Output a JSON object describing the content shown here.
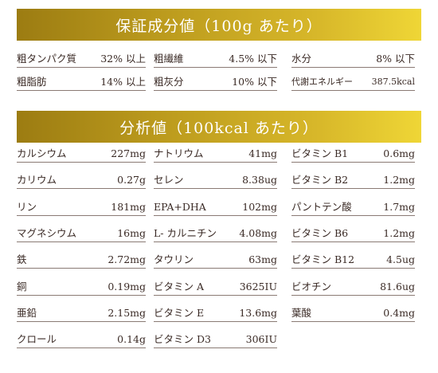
{
  "guaranteed": {
    "title": "保証成分値（100g あたり）",
    "items": [
      {
        "label": "粗タンパク質",
        "value": "32% 以上"
      },
      {
        "label": "粗繊維",
        "value": "4.5% 以下"
      },
      {
        "label": "水分",
        "value": "8% 以下"
      },
      {
        "label": "粗脂肪",
        "value": "14% 以上"
      },
      {
        "label": "粗灰分",
        "value": "10% 以下"
      },
      {
        "label": "代謝エネルギー",
        "value": "387.5kcal"
      }
    ]
  },
  "analysis": {
    "title": "分析値（100kcal あたり）",
    "col1": [
      {
        "label": "カルシウム",
        "value": "227mg"
      },
      {
        "label": "カリウム",
        "value": "0.27g"
      },
      {
        "label": "リン",
        "value": "181mg"
      },
      {
        "label": "マグネシウム",
        "value": "16mg"
      },
      {
        "label": "鉄",
        "value": "2.72mg"
      },
      {
        "label": "銅",
        "value": "0.19mg"
      },
      {
        "label": "亜鉛",
        "value": "2.15mg"
      },
      {
        "label": "クロール",
        "value": "0.14g"
      }
    ],
    "col2": [
      {
        "label": "ナトリウム",
        "value": "41mg"
      },
      {
        "label": "セレン",
        "value": "8.38ug"
      },
      {
        "label": "EPA+DHA",
        "value": "102mg"
      },
      {
        "label": "L- カルニチン",
        "value": "4.08mg"
      },
      {
        "label": "タウリン",
        "value": "63mg"
      },
      {
        "label": "ビタミン A",
        "value": "3625IU"
      },
      {
        "label": "ビタミン E",
        "value": "13.6mg"
      },
      {
        "label": "ビタミン D3",
        "value": "306IU"
      }
    ],
    "col3": [
      {
        "label": "ビタミン B1",
        "value": "0.6mg"
      },
      {
        "label": "ビタミン B2",
        "value": "1.2mg"
      },
      {
        "label": "パントテン酸",
        "value": "1.7mg"
      },
      {
        "label": "ビタミン B6",
        "value": "1.2mg"
      },
      {
        "label": "ビタミン B12",
        "value": "4.5ug"
      },
      {
        "label": "ビオチン",
        "value": "81.6ug"
      },
      {
        "label": "葉酸",
        "value": "0.4mg"
      }
    ]
  },
  "colors": {
    "banner_gold_dark": "#9c7c12",
    "banner_gold_light": "#efd636",
    "text": "#3a2a25"
  }
}
